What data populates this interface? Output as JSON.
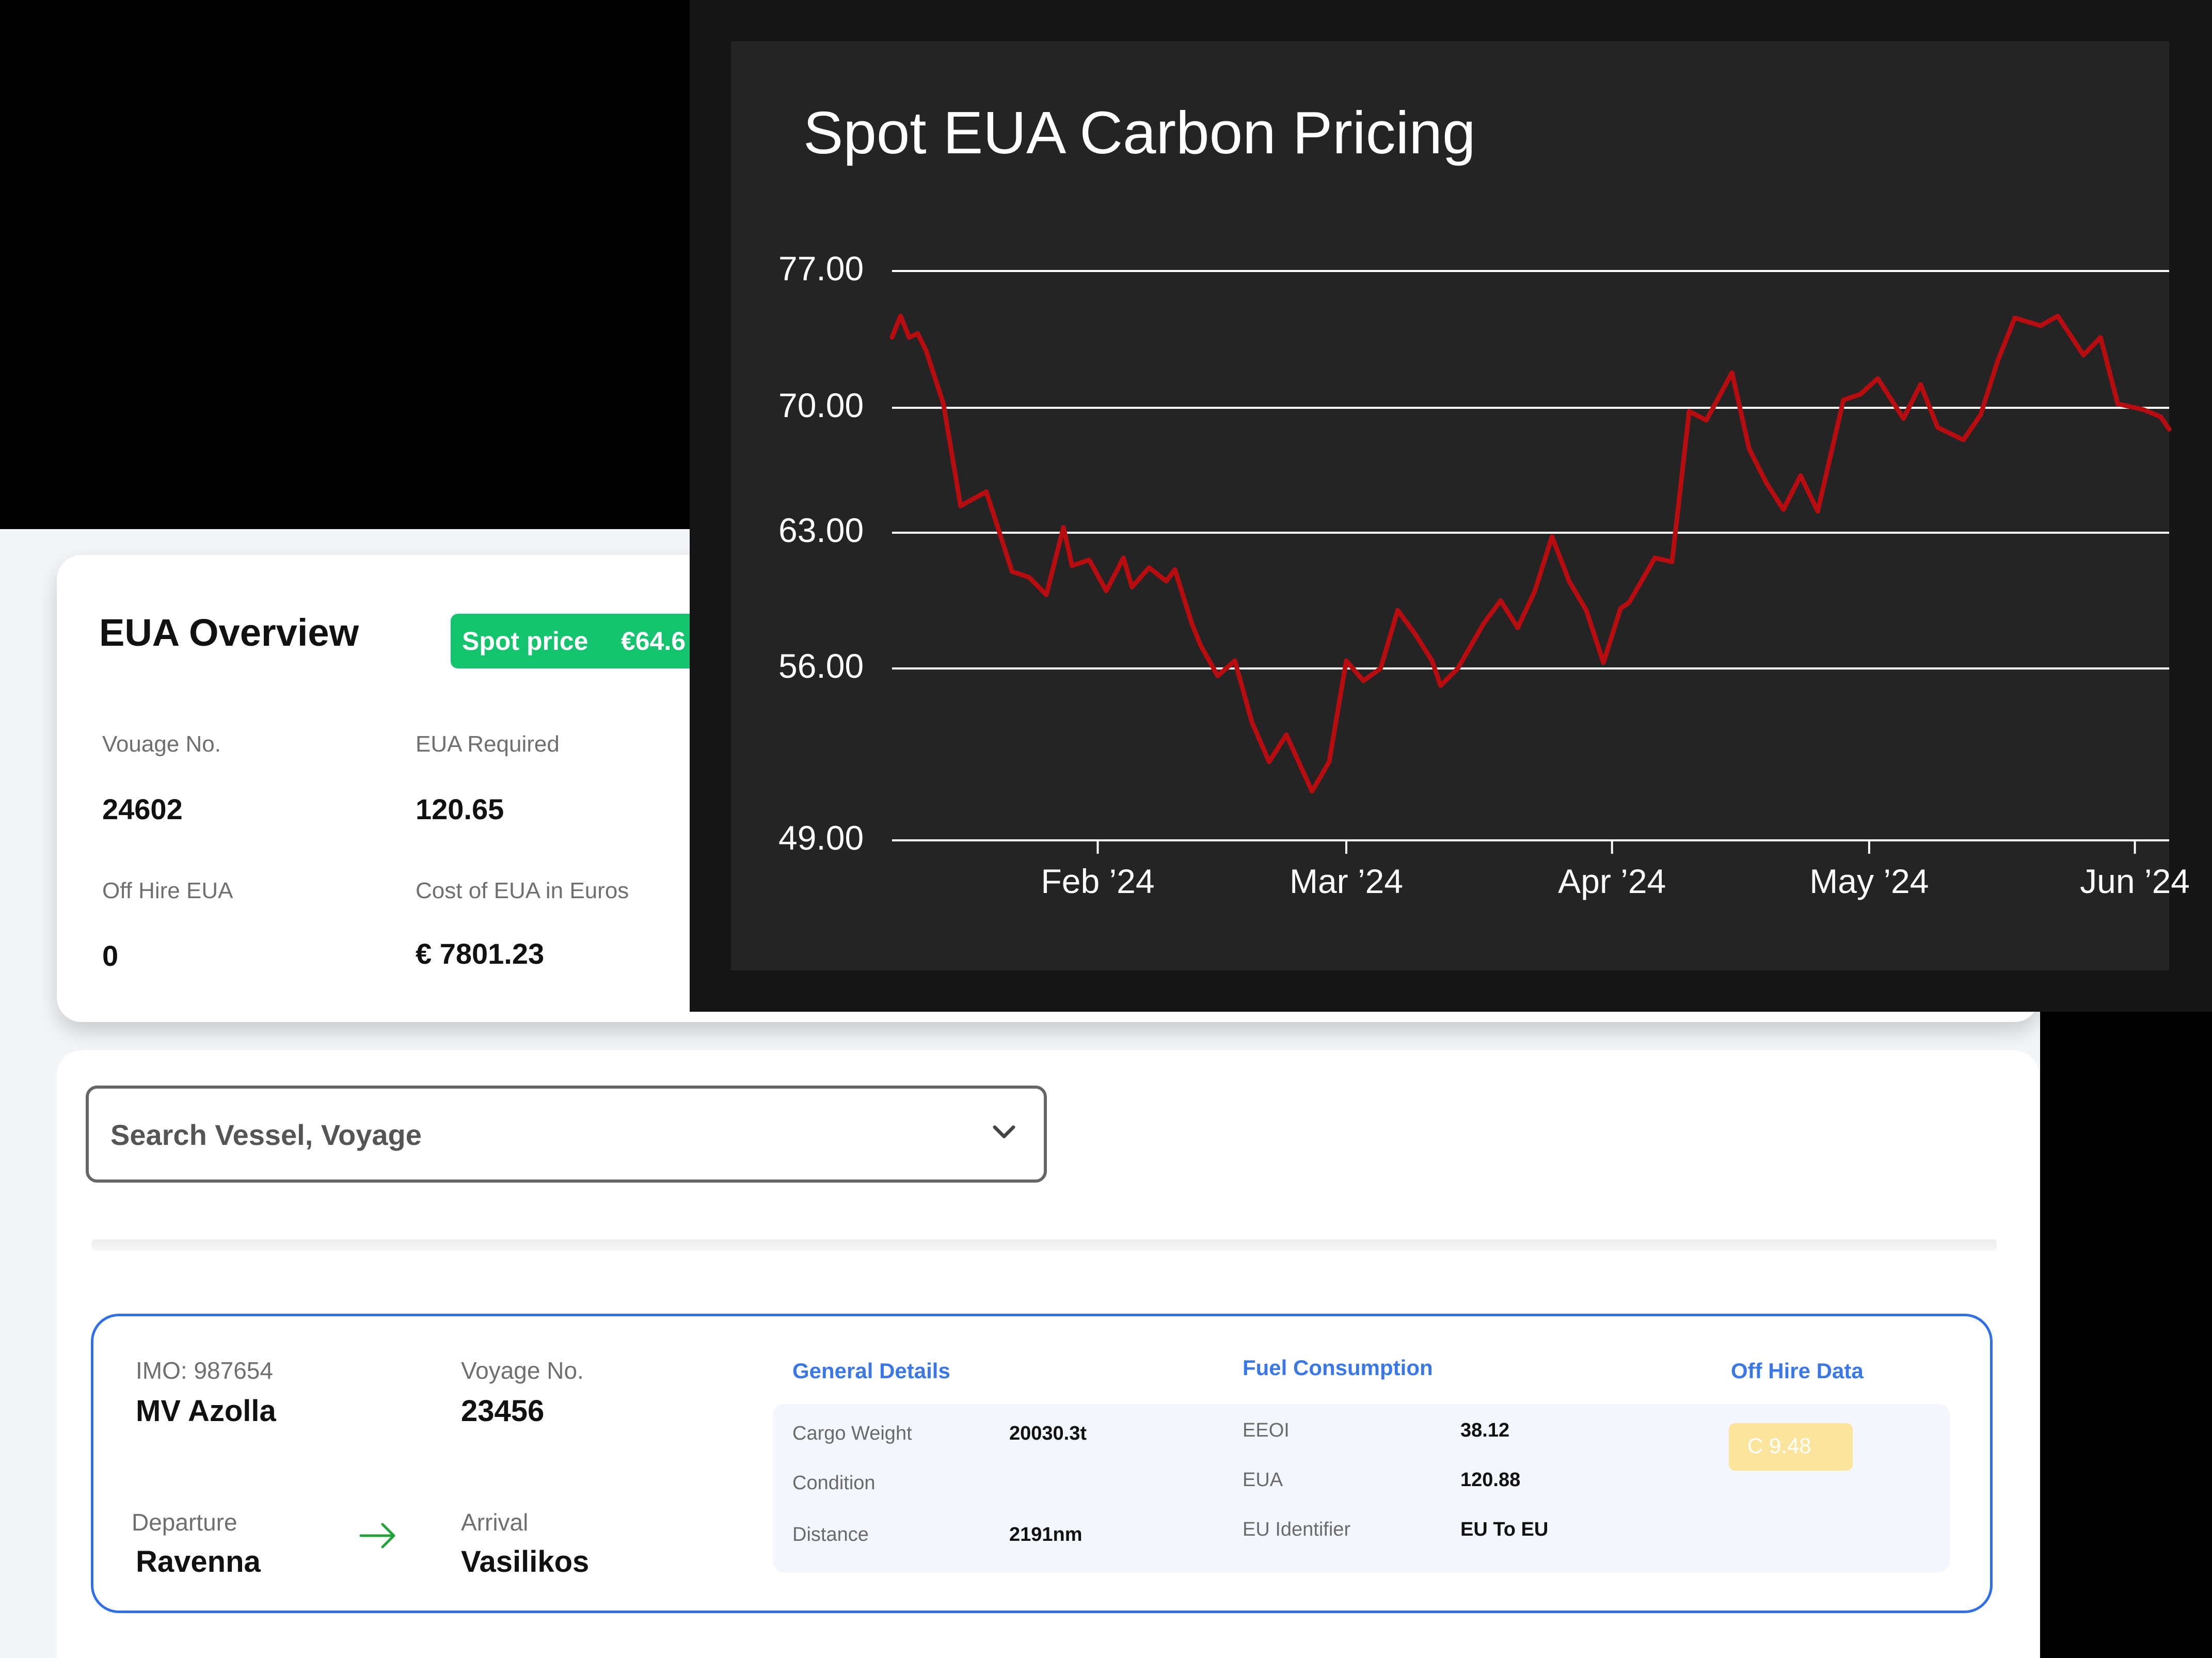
{
  "overview": {
    "title": "EUA Overview",
    "spot_label": "Spot price",
    "spot_value": "€64.6",
    "fields": [
      {
        "label": "Vouage No.",
        "value": "24602"
      },
      {
        "label": "EUA Required",
        "value": "120.65"
      },
      {
        "label": "Off Hire EUA",
        "value": "0"
      },
      {
        "label": "Cost of EUA in Euros",
        "value": "€ 7801.23"
      }
    ]
  },
  "search": {
    "placeholder": "Search Vessel, Voyage"
  },
  "voyage": {
    "imo": "IMO: 987654",
    "vessel": "MV Azolla",
    "voyage_label": "Voyage No.",
    "voyage_no": "23456",
    "departure_label": "Departure",
    "departure": "Ravenna",
    "arrival_label": "Arrival",
    "arrival": "Vasilikos",
    "general_head": "General Details",
    "fuel_head": "Fuel Consumption",
    "offhire_head": "Off Hire Data",
    "general": [
      {
        "label": "Cargo Weight",
        "value": "20030.3t"
      },
      {
        "label": "Condition",
        "value": ""
      },
      {
        "label": "Distance",
        "value": "2191nm"
      }
    ],
    "fuel": [
      {
        "label": "EEOI",
        "value": "38.12"
      },
      {
        "label": "EUA",
        "value": "120.88"
      },
      {
        "label": "EU Identifier",
        "value": "EU To EU"
      }
    ],
    "offhire_value": "C 9.48",
    "colors": {
      "accent": "#3b78e7",
      "arrow": "#22a33a",
      "badge": "#fbe49c",
      "spot": "#14c36e"
    }
  },
  "chart_data": {
    "type": "line",
    "title": "Spot EUA Carbon Pricing",
    "yticks": [
      "77.00",
      "70.00",
      "63.00",
      "56.00",
      "49.00"
    ],
    "ytick_values": [
      77,
      70,
      63,
      56,
      49
    ],
    "xticks": [
      "Feb ’24",
      "Mar ’24",
      "Apr ’24",
      "May ’24",
      "Jun ’24"
    ],
    "xtick_dates": [
      "2024-02-01",
      "2024-03-01",
      "2024-04-01",
      "2024-05-01",
      "2024-06-01"
    ],
    "xlim": [
      "2024-01-08",
      "2024-06-05"
    ],
    "ylim": [
      49,
      77
    ],
    "line_color": "#b80d10",
    "grid": true,
    "series": [
      {
        "x": [
          "2024-01-08",
          "2024-01-09",
          "2024-01-10",
          "2024-01-11",
          "2024-01-12",
          "2024-01-14",
          "2024-01-16",
          "2024-01-19",
          "2024-01-22",
          "2024-01-24",
          "2024-01-26",
          "2024-01-28",
          "2024-01-29",
          "2024-01-31",
          "2024-02-02",
          "2024-02-04",
          "2024-02-05",
          "2024-02-07",
          "2024-02-09",
          "2024-02-10",
          "2024-02-12",
          "2024-02-13",
          "2024-02-15",
          "2024-02-17",
          "2024-02-19",
          "2024-02-21",
          "2024-02-23",
          "2024-02-26",
          "2024-02-28",
          "2024-03-01",
          "2024-03-03",
          "2024-03-05",
          "2024-03-07",
          "2024-03-09",
          "2024-03-11",
          "2024-03-12",
          "2024-03-14",
          "2024-03-17",
          "2024-03-19",
          "2024-03-21",
          "2024-03-23",
          "2024-03-25",
          "2024-03-27",
          "2024-03-29",
          "2024-03-31",
          "2024-04-02",
          "2024-04-03",
          "2024-04-06",
          "2024-04-08",
          "2024-04-10",
          "2024-04-12",
          "2024-04-15",
          "2024-04-17",
          "2024-04-19",
          "2024-04-21",
          "2024-04-23",
          "2024-04-25",
          "2024-04-28",
          "2024-04-30",
          "2024-05-02",
          "2024-05-05",
          "2024-05-07",
          "2024-05-09",
          "2024-05-12",
          "2024-05-14",
          "2024-05-16",
          "2024-05-18",
          "2024-05-21",
          "2024-05-23",
          "2024-05-26",
          "2024-05-28",
          "2024-05-30",
          "2024-06-02",
          "2024-06-04",
          "2024-06-05"
        ],
        "values": [
          73.6,
          74.7,
          73.6,
          73.8,
          72.9,
          70.2,
          64.5,
          65.3,
          61.0,
          60.7,
          59.8,
          63.3,
          61.3,
          61.6,
          60.0,
          61.7,
          60.2,
          61.2,
          60.5,
          61.1,
          58.3,
          57.2,
          55.7,
          56.4,
          53.8,
          52.2,
          53.3,
          51.0,
          52.2,
          56.4,
          55.5,
          56.0,
          59.0,
          57.8,
          56.4,
          55.3,
          56.0,
          58.3,
          59.5,
          58.1,
          60.0,
          62.8,
          60.5,
          59.0,
          56.3,
          59.1,
          59.4,
          61.7,
          61.5,
          69.8,
          69.3,
          71.8,
          67.7,
          65.8,
          64.3,
          66.2,
          64.2,
          70.4,
          70.7,
          71.5,
          69.4,
          71.2,
          68.9,
          68.2,
          69.6,
          72.4,
          74.6,
          74.2,
          74.7,
          72.7,
          73.6,
          70.2,
          69.9,
          69.5,
          68.8
        ]
      }
    ]
  }
}
